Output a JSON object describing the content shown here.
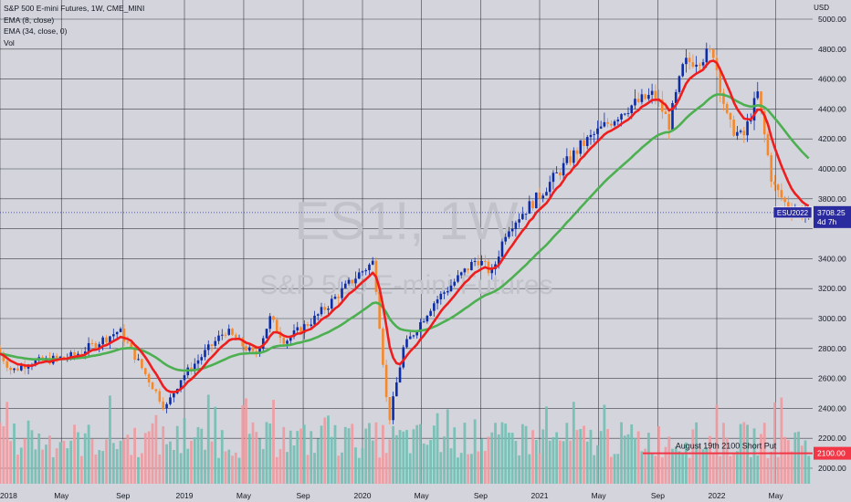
{
  "legend": {
    "title": "S&P 500 E-mini Futures, 1W, CME_MINI",
    "ema_fast": "EMA (8, close)",
    "ema_slow": "EMA (34, close, 0)",
    "volume": "Vol"
  },
  "watermark": {
    "symbol": "ES1!, 1W",
    "name": "S&P 500 E-mini Futures"
  },
  "price_axis": {
    "currency": "USD",
    "ticks": [
      "5000.00",
      "4800.00",
      "4600.00",
      "4400.00",
      "4200.00",
      "4000.00",
      "3800.00",
      "3600.00",
      "3400.00",
      "3200.00",
      "3000.00",
      "2800.00",
      "2600.00",
      "2400.00",
      "2200.00",
      "2000.00"
    ]
  },
  "time_axis": {
    "labels": [
      "2018",
      "May",
      "Sep",
      "2019",
      "May",
      "Sep",
      "2020",
      "May",
      "Sep",
      "2021",
      "May",
      "Sep",
      "2022",
      "May"
    ]
  },
  "last_price": {
    "symbol_badge": "ESU2022",
    "value": "3708.25",
    "countdown": "4d 7h",
    "value_num": 3708.25,
    "color": "#2b2ba0"
  },
  "annotation": {
    "label": "August 19th 2100 Short Put",
    "value": "2100.00",
    "value_num": 2100,
    "color": "#f23645"
  },
  "colors": {
    "background": "#d4d5dc",
    "up_candle": "#0d2ca8",
    "down_candle": "#f7882a",
    "ema_fast": "#ef1e1e",
    "ema_slow": "#4caf50",
    "volume_up": "#72bfb4",
    "volume_down": "#ee9aa0",
    "grid": "#20232b"
  },
  "chart_data": {
    "type": "candlestick",
    "title": "S&P 500 E-mini Futures, 1W, CME_MINI",
    "ylabel": "USD",
    "ylim": [
      1900,
      5100
    ],
    "grid": true,
    "x_period": "weekly, Jan 2018 to Jul 2022",
    "key_points": [
      {
        "date": "2018-01",
        "price": 2800
      },
      {
        "date": "2018-02",
        "price": 2650
      },
      {
        "date": "2018-03",
        "price": 2700
      },
      {
        "date": "2018-06",
        "price": 2750
      },
      {
        "date": "2018-09",
        "price": 2920
      },
      {
        "date": "2018-10",
        "price": 2750
      },
      {
        "date": "2018-12",
        "price": 2400
      },
      {
        "date": "2019-01",
        "price": 2600
      },
      {
        "date": "2019-04",
        "price": 2920
      },
      {
        "date": "2019-06",
        "price": 2750
      },
      {
        "date": "2019-07",
        "price": 3000
      },
      {
        "date": "2019-08",
        "price": 2850
      },
      {
        "date": "2019-10",
        "price": 3000
      },
      {
        "date": "2020-01",
        "price": 3300
      },
      {
        "date": "2020-02",
        "price": 3380
      },
      {
        "date": "2020-03",
        "price": 2300
      },
      {
        "date": "2020-04",
        "price": 2800
      },
      {
        "date": "2020-06",
        "price": 3100
      },
      {
        "date": "2020-09",
        "price": 3400
      },
      {
        "date": "2020-10",
        "price": 3300
      },
      {
        "date": "2020-11",
        "price": 3600
      },
      {
        "date": "2021-01",
        "price": 3800
      },
      {
        "date": "2021-04",
        "price": 4150
      },
      {
        "date": "2021-07",
        "price": 4400
      },
      {
        "date": "2021-09",
        "price": 4500
      },
      {
        "date": "2021-10",
        "price": 4300
      },
      {
        "date": "2021-11",
        "price": 4700
      },
      {
        "date": "2022-01",
        "price": 4780
      },
      {
        "date": "2022-02",
        "price": 4300
      },
      {
        "date": "2022-03",
        "price": 4200
      },
      {
        "date": "2022-04",
        "price": 4500
      },
      {
        "date": "2022-05",
        "price": 3900
      },
      {
        "date": "2022-06",
        "price": 3750
      },
      {
        "date": "2022-07",
        "price": 3708
      }
    ],
    "series": [
      {
        "name": "EMA (8, close)"
      },
      {
        "name": "EMA (34, close, 0)"
      },
      {
        "name": "Vol"
      }
    ]
  }
}
